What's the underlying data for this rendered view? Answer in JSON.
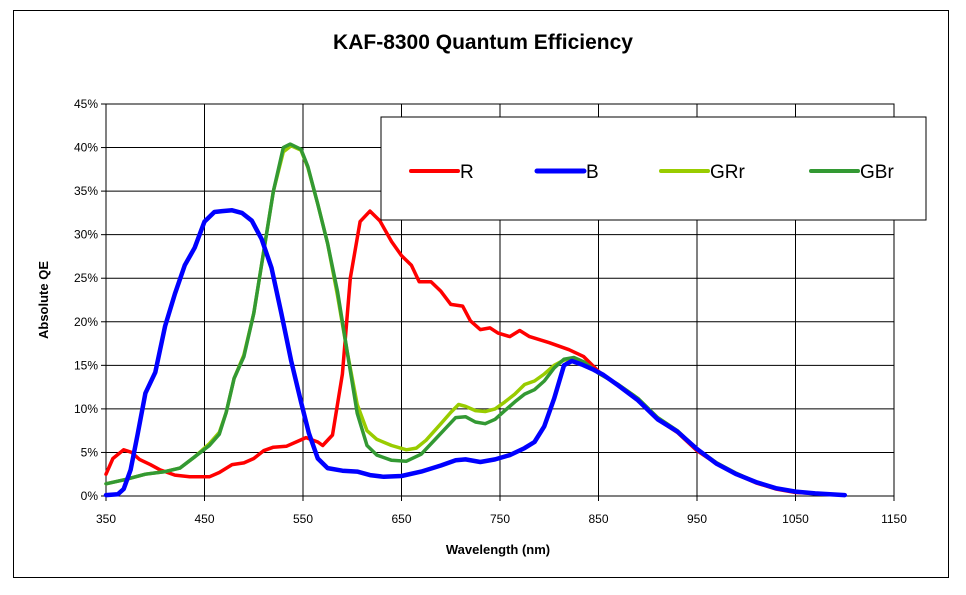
{
  "chart_data": {
    "type": "line",
    "title": "KAF-8300 Quantum Efficiency",
    "xlabel": "Wavelength (nm)",
    "ylabel": "Absolute QE",
    "xlim": [
      350,
      1150
    ],
    "ylim": [
      0,
      0.45
    ],
    "x_ticks": [
      350,
      450,
      550,
      650,
      750,
      850,
      950,
      1050,
      1150
    ],
    "x_tick_labels": [
      "350",
      "450",
      "550",
      "650",
      "750",
      "850",
      "950",
      "1050",
      "1150"
    ],
    "y_ticks": [
      0,
      0.05,
      0.1,
      0.15,
      0.2,
      0.25,
      0.3,
      0.35,
      0.4,
      0.45
    ],
    "y_tick_labels": [
      "0%",
      "5%",
      "10%",
      "15%",
      "20%",
      "25%",
      "30%",
      "35%",
      "40%",
      "45%"
    ],
    "grid": true,
    "legend_position": "top-right",
    "colors": {
      "R": "#ff0000",
      "B": "#0000ff",
      "GRr": "#99cc00",
      "GBr": "#339933"
    },
    "series": [
      {
        "name": "R",
        "points": [
          [
            350,
            0.025
          ],
          [
            357,
            0.043
          ],
          [
            368,
            0.053
          ],
          [
            376,
            0.05
          ],
          [
            384,
            0.042
          ],
          [
            395,
            0.036
          ],
          [
            405,
            0.03
          ],
          [
            420,
            0.024
          ],
          [
            435,
            0.022
          ],
          [
            445,
            0.022
          ],
          [
            455,
            0.022
          ],
          [
            465,
            0.027
          ],
          [
            478,
            0.036
          ],
          [
            490,
            0.038
          ],
          [
            500,
            0.043
          ],
          [
            510,
            0.052
          ],
          [
            520,
            0.056
          ],
          [
            533,
            0.057
          ],
          [
            545,
            0.063
          ],
          [
            553,
            0.067
          ],
          [
            565,
            0.062
          ],
          [
            570,
            0.058
          ],
          [
            580,
            0.07
          ],
          [
            590,
            0.14
          ],
          [
            598,
            0.25
          ],
          [
            608,
            0.315
          ],
          [
            618,
            0.327
          ],
          [
            628,
            0.316
          ],
          [
            640,
            0.292
          ],
          [
            650,
            0.276
          ],
          [
            660,
            0.265
          ],
          [
            668,
            0.246
          ],
          [
            680,
            0.246
          ],
          [
            690,
            0.235
          ],
          [
            700,
            0.22
          ],
          [
            712,
            0.218
          ],
          [
            720,
            0.201
          ],
          [
            730,
            0.191
          ],
          [
            740,
            0.193
          ],
          [
            748,
            0.187
          ],
          [
            760,
            0.183
          ],
          [
            770,
            0.19
          ],
          [
            780,
            0.183
          ],
          [
            800,
            0.176
          ],
          [
            820,
            0.168
          ],
          [
            835,
            0.16
          ],
          [
            850,
            0.143
          ],
          [
            870,
            0.127
          ],
          [
            890,
            0.11
          ],
          [
            910,
            0.088
          ],
          [
            930,
            0.073
          ],
          [
            950,
            0.052
          ],
          [
            970,
            0.037
          ],
          [
            990,
            0.025
          ],
          [
            1010,
            0.015
          ],
          [
            1030,
            0.008
          ],
          [
            1050,
            0.004
          ],
          [
            1070,
            0.003
          ],
          [
            1100,
            0.001
          ]
        ]
      },
      {
        "name": "B",
        "points": [
          [
            350,
            0.001
          ],
          [
            362,
            0.002
          ],
          [
            368,
            0.008
          ],
          [
            375,
            0.03
          ],
          [
            382,
            0.07
          ],
          [
            390,
            0.118
          ],
          [
            400,
            0.142
          ],
          [
            410,
            0.195
          ],
          [
            420,
            0.232
          ],
          [
            430,
            0.265
          ],
          [
            440,
            0.285
          ],
          [
            450,
            0.315
          ],
          [
            460,
            0.326
          ],
          [
            468,
            0.327
          ],
          [
            478,
            0.328
          ],
          [
            488,
            0.325
          ],
          [
            498,
            0.316
          ],
          [
            508,
            0.295
          ],
          [
            518,
            0.262
          ],
          [
            528,
            0.21
          ],
          [
            538,
            0.155
          ],
          [
            548,
            0.108
          ],
          [
            556,
            0.072
          ],
          [
            565,
            0.043
          ],
          [
            575,
            0.032
          ],
          [
            590,
            0.029
          ],
          [
            605,
            0.028
          ],
          [
            618,
            0.024
          ],
          [
            632,
            0.022
          ],
          [
            650,
            0.023
          ],
          [
            670,
            0.028
          ],
          [
            690,
            0.035
          ],
          [
            705,
            0.041
          ],
          [
            715,
            0.042
          ],
          [
            730,
            0.039
          ],
          [
            745,
            0.042
          ],
          [
            760,
            0.047
          ],
          [
            775,
            0.055
          ],
          [
            785,
            0.062
          ],
          [
            795,
            0.08
          ],
          [
            805,
            0.112
          ],
          [
            815,
            0.15
          ],
          [
            823,
            0.155
          ],
          [
            833,
            0.151
          ],
          [
            845,
            0.145
          ],
          [
            855,
            0.139
          ],
          [
            870,
            0.127
          ],
          [
            890,
            0.11
          ],
          [
            910,
            0.088
          ],
          [
            930,
            0.074
          ],
          [
            950,
            0.054
          ],
          [
            970,
            0.037
          ],
          [
            990,
            0.025
          ],
          [
            1010,
            0.016
          ],
          [
            1030,
            0.009
          ],
          [
            1050,
            0.005
          ],
          [
            1070,
            0.003
          ],
          [
            1100,
            0.001
          ]
        ]
      },
      {
        "name": "GRr",
        "points": [
          [
            350,
            0.014
          ],
          [
            370,
            0.019
          ],
          [
            390,
            0.025
          ],
          [
            410,
            0.028
          ],
          [
            425,
            0.032
          ],
          [
            440,
            0.045
          ],
          [
            455,
            0.06
          ],
          [
            465,
            0.073
          ],
          [
            472,
            0.096
          ],
          [
            480,
            0.135
          ],
          [
            490,
            0.162
          ],
          [
            500,
            0.21
          ],
          [
            510,
            0.28
          ],
          [
            520,
            0.35
          ],
          [
            530,
            0.395
          ],
          [
            538,
            0.402
          ],
          [
            548,
            0.397
          ],
          [
            555,
            0.377
          ],
          [
            565,
            0.335
          ],
          [
            575,
            0.29
          ],
          [
            585,
            0.23
          ],
          [
            595,
            0.165
          ],
          [
            605,
            0.105
          ],
          [
            615,
            0.075
          ],
          [
            625,
            0.065
          ],
          [
            640,
            0.058
          ],
          [
            655,
            0.053
          ],
          [
            665,
            0.055
          ],
          [
            675,
            0.064
          ],
          [
            690,
            0.083
          ],
          [
            700,
            0.096
          ],
          [
            708,
            0.105
          ],
          [
            715,
            0.103
          ],
          [
            725,
            0.098
          ],
          [
            735,
            0.097
          ],
          [
            745,
            0.1
          ],
          [
            755,
            0.108
          ],
          [
            765,
            0.117
          ],
          [
            775,
            0.128
          ],
          [
            785,
            0.132
          ],
          [
            795,
            0.14
          ],
          [
            805,
            0.15
          ],
          [
            815,
            0.156
          ],
          [
            825,
            0.158
          ],
          [
            835,
            0.154
          ],
          [
            850,
            0.141
          ],
          [
            870,
            0.128
          ],
          [
            890,
            0.112
          ],
          [
            910,
            0.09
          ],
          [
            930,
            0.075
          ],
          [
            950,
            0.054
          ],
          [
            970,
            0.038
          ],
          [
            990,
            0.026
          ],
          [
            1010,
            0.016
          ],
          [
            1030,
            0.009
          ],
          [
            1050,
            0.005
          ],
          [
            1070,
            0.003
          ],
          [
            1100,
            0.001
          ]
        ]
      },
      {
        "name": "GBr",
        "points": [
          [
            350,
            0.014
          ],
          [
            370,
            0.019
          ],
          [
            390,
            0.025
          ],
          [
            410,
            0.028
          ],
          [
            425,
            0.032
          ],
          [
            440,
            0.045
          ],
          [
            455,
            0.058
          ],
          [
            465,
            0.071
          ],
          [
            472,
            0.096
          ],
          [
            480,
            0.135
          ],
          [
            490,
            0.16
          ],
          [
            500,
            0.21
          ],
          [
            510,
            0.28
          ],
          [
            520,
            0.35
          ],
          [
            530,
            0.4
          ],
          [
            537,
            0.404
          ],
          [
            548,
            0.398
          ],
          [
            555,
            0.378
          ],
          [
            565,
            0.335
          ],
          [
            575,
            0.29
          ],
          [
            585,
            0.235
          ],
          [
            595,
            0.165
          ],
          [
            605,
            0.095
          ],
          [
            615,
            0.058
          ],
          [
            625,
            0.047
          ],
          [
            640,
            0.041
          ],
          [
            655,
            0.04
          ],
          [
            670,
            0.048
          ],
          [
            685,
            0.066
          ],
          [
            695,
            0.078
          ],
          [
            705,
            0.09
          ],
          [
            715,
            0.091
          ],
          [
            725,
            0.085
          ],
          [
            735,
            0.083
          ],
          [
            745,
            0.088
          ],
          [
            755,
            0.098
          ],
          [
            765,
            0.108
          ],
          [
            775,
            0.117
          ],
          [
            785,
            0.122
          ],
          [
            795,
            0.132
          ],
          [
            805,
            0.147
          ],
          [
            815,
            0.157
          ],
          [
            825,
            0.159
          ],
          [
            835,
            0.154
          ],
          [
            850,
            0.141
          ],
          [
            870,
            0.128
          ],
          [
            890,
            0.112
          ],
          [
            910,
            0.09
          ],
          [
            930,
            0.075
          ],
          [
            950,
            0.054
          ],
          [
            970,
            0.038
          ],
          [
            990,
            0.026
          ],
          [
            1010,
            0.016
          ],
          [
            1030,
            0.009
          ],
          [
            1050,
            0.005
          ],
          [
            1070,
            0.003
          ],
          [
            1100,
            0.001
          ]
        ]
      }
    ]
  }
}
